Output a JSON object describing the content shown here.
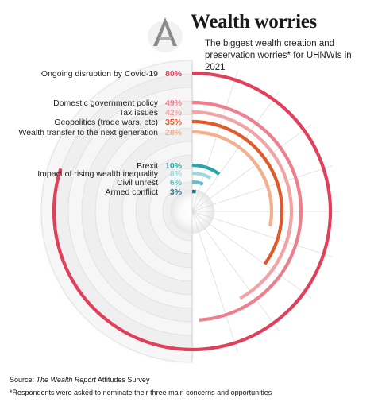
{
  "title": "Wealth worries",
  "subtitle": "The  biggest wealth creation and preservation worries* for UHNWIs in 2021",
  "source": {
    "prefix": "Source: ",
    "publication": "The Wealth Report",
    "suffix": " Attitudes Survey"
  },
  "footnote": "*Respondents were asked to nominate their three main concerns and opportunities",
  "logo_icon": "stylized-a-logo-icon",
  "chart_data": {
    "type": "radial-bar",
    "title": "Wealth worries",
    "unit": "%",
    "max": 100,
    "categories": [
      "Ongoing disruption by Covid-19",
      "Domestic government policy",
      "Tax issues",
      "Geopolitics (trade wars, etc)",
      "Wealth transfer to the next generation",
      "Brexit",
      "Impact of rising wealth inequality",
      "Civil unrest",
      "Armed conflict"
    ],
    "values": [
      80,
      49,
      42,
      35,
      28,
      10,
      8,
      6,
      3
    ],
    "labels": [
      "80%",
      "49%",
      "42%",
      "35%",
      "28%",
      "10%",
      "8%",
      "6%",
      "3%"
    ],
    "colors": [
      "#e0405a",
      "#ee7f8c",
      "#f2a3a3",
      "#e05a2b",
      "#f2b08e",
      "#2aa6a8",
      "#9fd8dc",
      "#66bcc3",
      "#2e7783"
    ]
  }
}
